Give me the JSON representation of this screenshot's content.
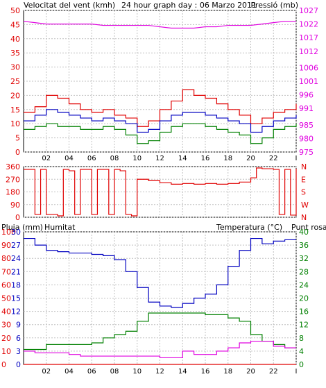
{
  "header": {
    "wind_label": "Velocitat del vent (kmh)",
    "title": "24 hour graph day : 06 Marzo 2011",
    "pressure_label": "Pressió (mb)"
  },
  "lower_header": {
    "rain_label": "Pluja (mm)",
    "humidity_label": "Humitat",
    "temperature_label": "Temperatura (°C)",
    "dewpoint_label": "Punt rosada"
  },
  "colors": {
    "wind_gust": "#e00000",
    "wind_avg": "#0000c0",
    "wind_min": "#008000",
    "pressure": "#e000e0",
    "direction": "#e00000",
    "humidity": "#0000c0",
    "temperature": "#008000",
    "dewpoint": "#e000e0",
    "rain": "#e00000",
    "grid": "#c0c0c0"
  },
  "chart_data": [
    {
      "id": "wind_pressure",
      "type": "line",
      "x_ticks": [
        "02",
        "04",
        "06",
        "08",
        "10",
        "12",
        "14",
        "16",
        "18",
        "20",
        "22",
        "I"
      ],
      "y_left": {
        "label": "Velocitat del vent (kmh)",
        "ylim": [
          0,
          50
        ],
        "ticks": [
          0,
          5,
          10,
          15,
          20,
          25,
          30,
          35,
          40,
          45,
          50
        ]
      },
      "y_right": {
        "label": "Pressió (mb)",
        "ylim": [
          975,
          1027
        ],
        "ticks": [
          975,
          980,
          985,
          991,
          996,
          1001,
          1006,
          1012,
          1017,
          1022,
          1027
        ]
      },
      "x": [
        0,
        1,
        2,
        3,
        4,
        5,
        6,
        7,
        8,
        9,
        10,
        11,
        12,
        13,
        14,
        15,
        16,
        17,
        18,
        19,
        20,
        21,
        22,
        23,
        24
      ],
      "series": [
        {
          "name": "wind_gust",
          "axis": "left",
          "values": [
            14,
            16,
            20,
            19,
            17,
            15,
            14,
            15,
            13,
            12,
            9,
            11,
            15,
            18,
            22,
            20,
            19,
            17,
            15,
            13,
            10,
            12,
            14,
            15,
            17
          ]
        },
        {
          "name": "wind_avg",
          "axis": "left",
          "values": [
            11,
            13,
            15,
            14,
            13,
            12,
            11,
            12,
            11,
            10,
            7,
            8,
            11,
            13,
            14,
            14,
            13,
            12,
            11,
            10,
            7,
            9,
            11,
            12,
            13
          ]
        },
        {
          "name": "wind_min",
          "axis": "left",
          "values": [
            8,
            9,
            10,
            9,
            9,
            8,
            8,
            9,
            8,
            6,
            3,
            4,
            7,
            9,
            10,
            10,
            9,
            8,
            7,
            6,
            3,
            5,
            8,
            9,
            10
          ]
        },
        {
          "name": "pressure",
          "axis": "right",
          "values": [
            1023,
            1022.5,
            1022,
            1022,
            1022,
            1022,
            1022,
            1021.5,
            1021.5,
            1021.5,
            1021.5,
            1021.5,
            1021,
            1020.5,
            1020.5,
            1020.5,
            1021,
            1021,
            1021.5,
            1021.5,
            1021.5,
            1022,
            1022.5,
            1023,
            1023
          ]
        }
      ]
    },
    {
      "id": "wind_direction",
      "type": "line",
      "y_left": {
        "ylim": [
          0,
          360
        ],
        "ticks": [
          0,
          90,
          180,
          270,
          360
        ]
      },
      "y_right": {
        "ticks": [
          "N",
          "E",
          "S",
          "W",
          "N"
        ]
      },
      "x": [
        0,
        1,
        1.5,
        2,
        2.5,
        3,
        3.5,
        4,
        4.5,
        5,
        5.5,
        6,
        6.5,
        7,
        7.5,
        8,
        8.5,
        9,
        9.5,
        10,
        11,
        12,
        13,
        14,
        15,
        16,
        17,
        18,
        19,
        20,
        20.5,
        21,
        22,
        22.5,
        23,
        23.5,
        24
      ],
      "series": [
        {
          "name": "direction",
          "values": [
            340,
            20,
            340,
            20,
            20,
            10,
            340,
            330,
            20,
            340,
            340,
            20,
            340,
            340,
            20,
            340,
            330,
            20,
            10,
            270,
            260,
            245,
            235,
            240,
            235,
            240,
            235,
            240,
            250,
            280,
            350,
            345,
            340,
            20,
            340,
            15,
            345
          ]
        }
      ]
    },
    {
      "id": "temp_humidity",
      "type": "line",
      "y_left_outer": {
        "label": "Pluja (mm)",
        "ylim": [
          0,
          100
        ],
        "ticks": [
          0,
          10,
          20,
          30,
          40,
          50,
          60,
          70,
          80,
          90,
          100
        ]
      },
      "y_left_inner": {
        "label": "Humitat",
        "ylim": [
          0,
          30
        ],
        "ticks": [
          0,
          3,
          6,
          9,
          12,
          15,
          18,
          21,
          24,
          27,
          30
        ]
      },
      "y_right": {
        "label": "Temperatura (°C)",
        "ylim": [
          0,
          40
        ],
        "ticks": [
          0,
          4,
          8,
          12,
          16,
          20,
          24,
          28,
          32,
          36,
          40
        ]
      },
      "x": [
        0,
        1,
        2,
        3,
        4,
        5,
        6,
        7,
        8,
        9,
        10,
        11,
        12,
        13,
        14,
        15,
        16,
        17,
        18,
        19,
        20,
        21,
        22,
        23,
        24
      ],
      "series": [
        {
          "name": "humidity",
          "axis": "left_outer",
          "values": [
            95,
            90,
            86,
            85,
            84,
            84,
            83,
            82,
            79,
            70,
            58,
            47,
            44,
            43,
            46,
            50,
            53,
            60,
            74,
            86,
            95,
            91,
            93,
            94,
            94
          ]
        },
        {
          "name": "temperature",
          "axis": "right",
          "values": [
            4.5,
            4.5,
            6,
            6,
            6,
            6,
            6.5,
            8,
            9,
            10,
            13,
            15.5,
            15.5,
            15.5,
            15.5,
            15.5,
            15,
            15,
            14,
            13,
            9,
            7,
            6,
            5,
            5
          ]
        },
        {
          "name": "dewpoint",
          "axis": "right",
          "values": [
            4,
            3.5,
            3.5,
            3.5,
            3,
            2.5,
            2.5,
            2.5,
            2.5,
            2.5,
            2.5,
            2.5,
            2,
            2,
            4,
            3,
            3,
            4,
            5,
            6.5,
            7,
            7,
            5.5,
            5,
            5
          ]
        },
        {
          "name": "rain",
          "axis": "left_outer",
          "values": [
            0,
            0,
            0,
            0,
            0,
            0,
            0,
            0,
            0,
            0,
            0,
            0,
            0,
            0,
            0,
            0,
            0,
            0,
            0,
            0,
            0,
            0,
            0,
            0,
            0
          ]
        }
      ]
    }
  ]
}
